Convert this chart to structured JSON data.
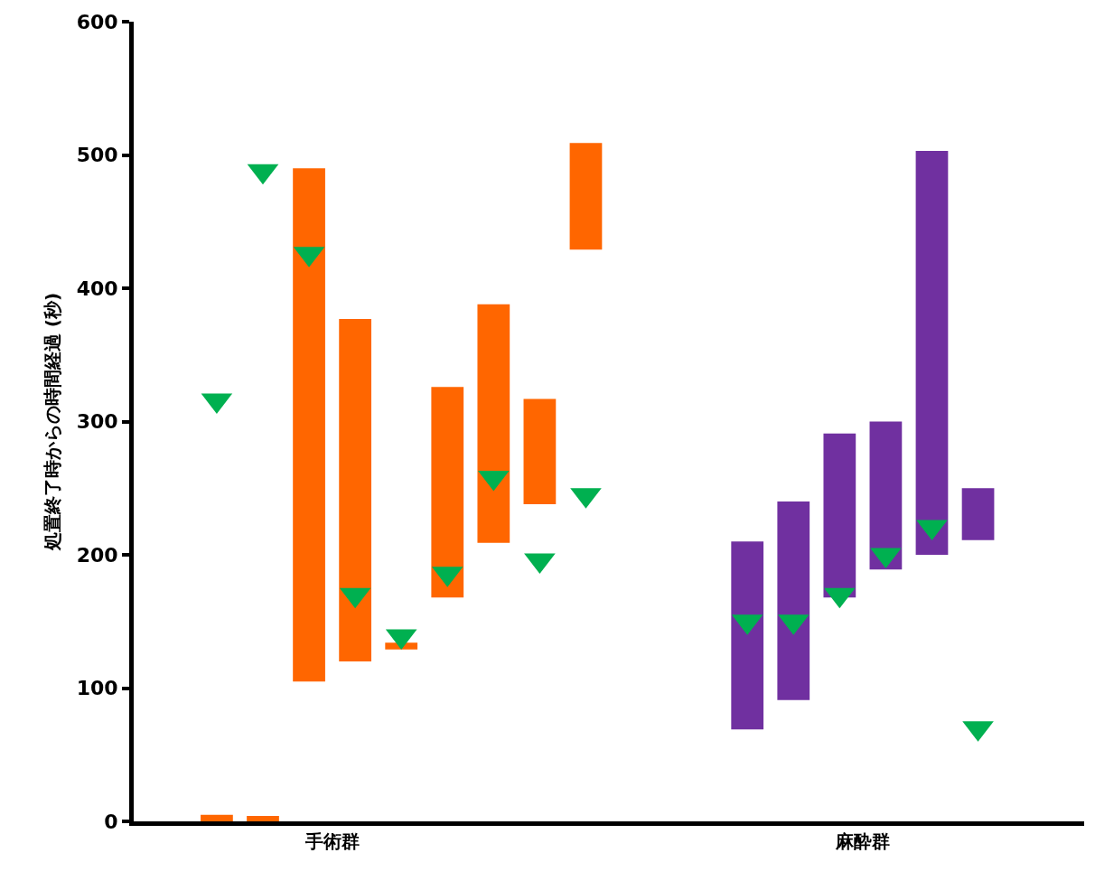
{
  "chart_data": {
    "type": "bar",
    "ylabel": "処置終了時からの時間経過 (秒)",
    "ylim": [
      0,
      600
    ],
    "yticks": [
      0,
      100,
      200,
      300,
      400,
      500,
      600
    ],
    "categories": [
      null,
      null,
      null,
      null,
      null,
      null,
      null,
      "手術群",
      null,
      null,
      null,
      null,
      null,
      null,
      null,
      null,
      null,
      null,
      null,
      null,
      null,
      null,
      null,
      null,
      null,
      null,
      null,
      null,
      null,
      null,
      "麻酔群",
      null,
      null,
      null,
      null,
      null,
      null
    ],
    "marker": "triangle",
    "series": [
      {
        "color": "#ff6600",
        "base": [
          null,
          null,
          0,
          null,
          0,
          null,
          105,
          null,
          120,
          null,
          129,
          null,
          168,
          null,
          209,
          null,
          238,
          null,
          429,
          null,
          null,
          null,
          null,
          null,
          null,
          null,
          null,
          null,
          null,
          null,
          null,
          null,
          null,
          null,
          null,
          null,
          null
        ],
        "values": [
          null,
          null,
          5,
          null,
          4,
          null,
          385,
          null,
          257,
          null,
          5,
          null,
          158,
          null,
          179,
          null,
          79,
          null,
          80,
          null,
          null,
          null,
          null,
          null,
          null,
          null,
          null,
          null,
          null,
          null,
          null,
          null,
          null,
          null,
          null,
          null,
          null
        ]
      },
      {
        "color": "#7030a0",
        "base": [
          null,
          null,
          null,
          null,
          null,
          null,
          null,
          null,
          null,
          null,
          null,
          null,
          null,
          null,
          null,
          null,
          null,
          null,
          null,
          null,
          null,
          null,
          null,
          null,
          null,
          69,
          null,
          91,
          null,
          168,
          null,
          189,
          null,
          200,
          null,
          211,
          null
        ],
        "values": [
          null,
          null,
          null,
          null,
          null,
          null,
          null,
          null,
          null,
          null,
          null,
          null,
          null,
          null,
          null,
          null,
          null,
          null,
          null,
          null,
          null,
          null,
          null,
          null,
          null,
          141,
          null,
          149,
          null,
          123,
          null,
          111,
          null,
          303,
          null,
          39,
          null
        ]
      },
      {
        "type": "scatter",
        "color": "#00b050",
        "values": [
          null,
          null,
          316,
          null,
          488,
          null,
          426,
          null,
          170,
          null,
          139,
          null,
          186,
          null,
          258,
          null,
          196,
          null,
          245,
          null,
          null,
          null,
          null,
          null,
          null,
          150,
          null,
          150,
          null,
          170,
          null,
          200,
          null,
          221,
          null,
          70,
          null
        ]
      }
    ]
  }
}
